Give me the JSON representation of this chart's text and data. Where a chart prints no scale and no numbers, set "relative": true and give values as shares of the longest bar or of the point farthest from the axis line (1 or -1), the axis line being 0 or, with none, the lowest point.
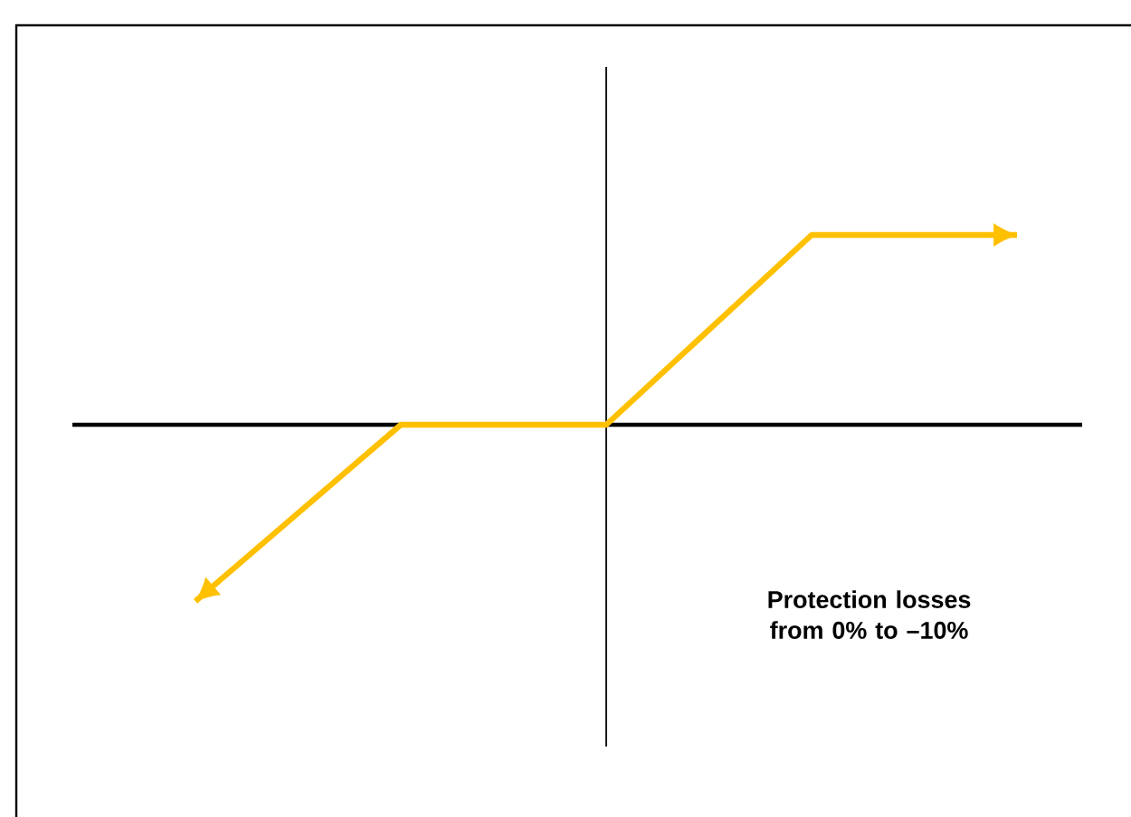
{
  "chart_data": {
    "type": "line",
    "relative": true,
    "categories": [
      null,
      null,
      null,
      null,
      null
    ],
    "series": [
      {
        "color": "#ffc000",
        "values": [
          -0.93,
          0,
          0,
          1,
          1
        ]
      }
    ],
    "ref_lines": [
      {
        "axis": "y",
        "value": 0,
        "color": "#000000"
      }
    ],
    "annotations": [
      "**Protection losses from 0% to –10%**"
    ]
  }
}
